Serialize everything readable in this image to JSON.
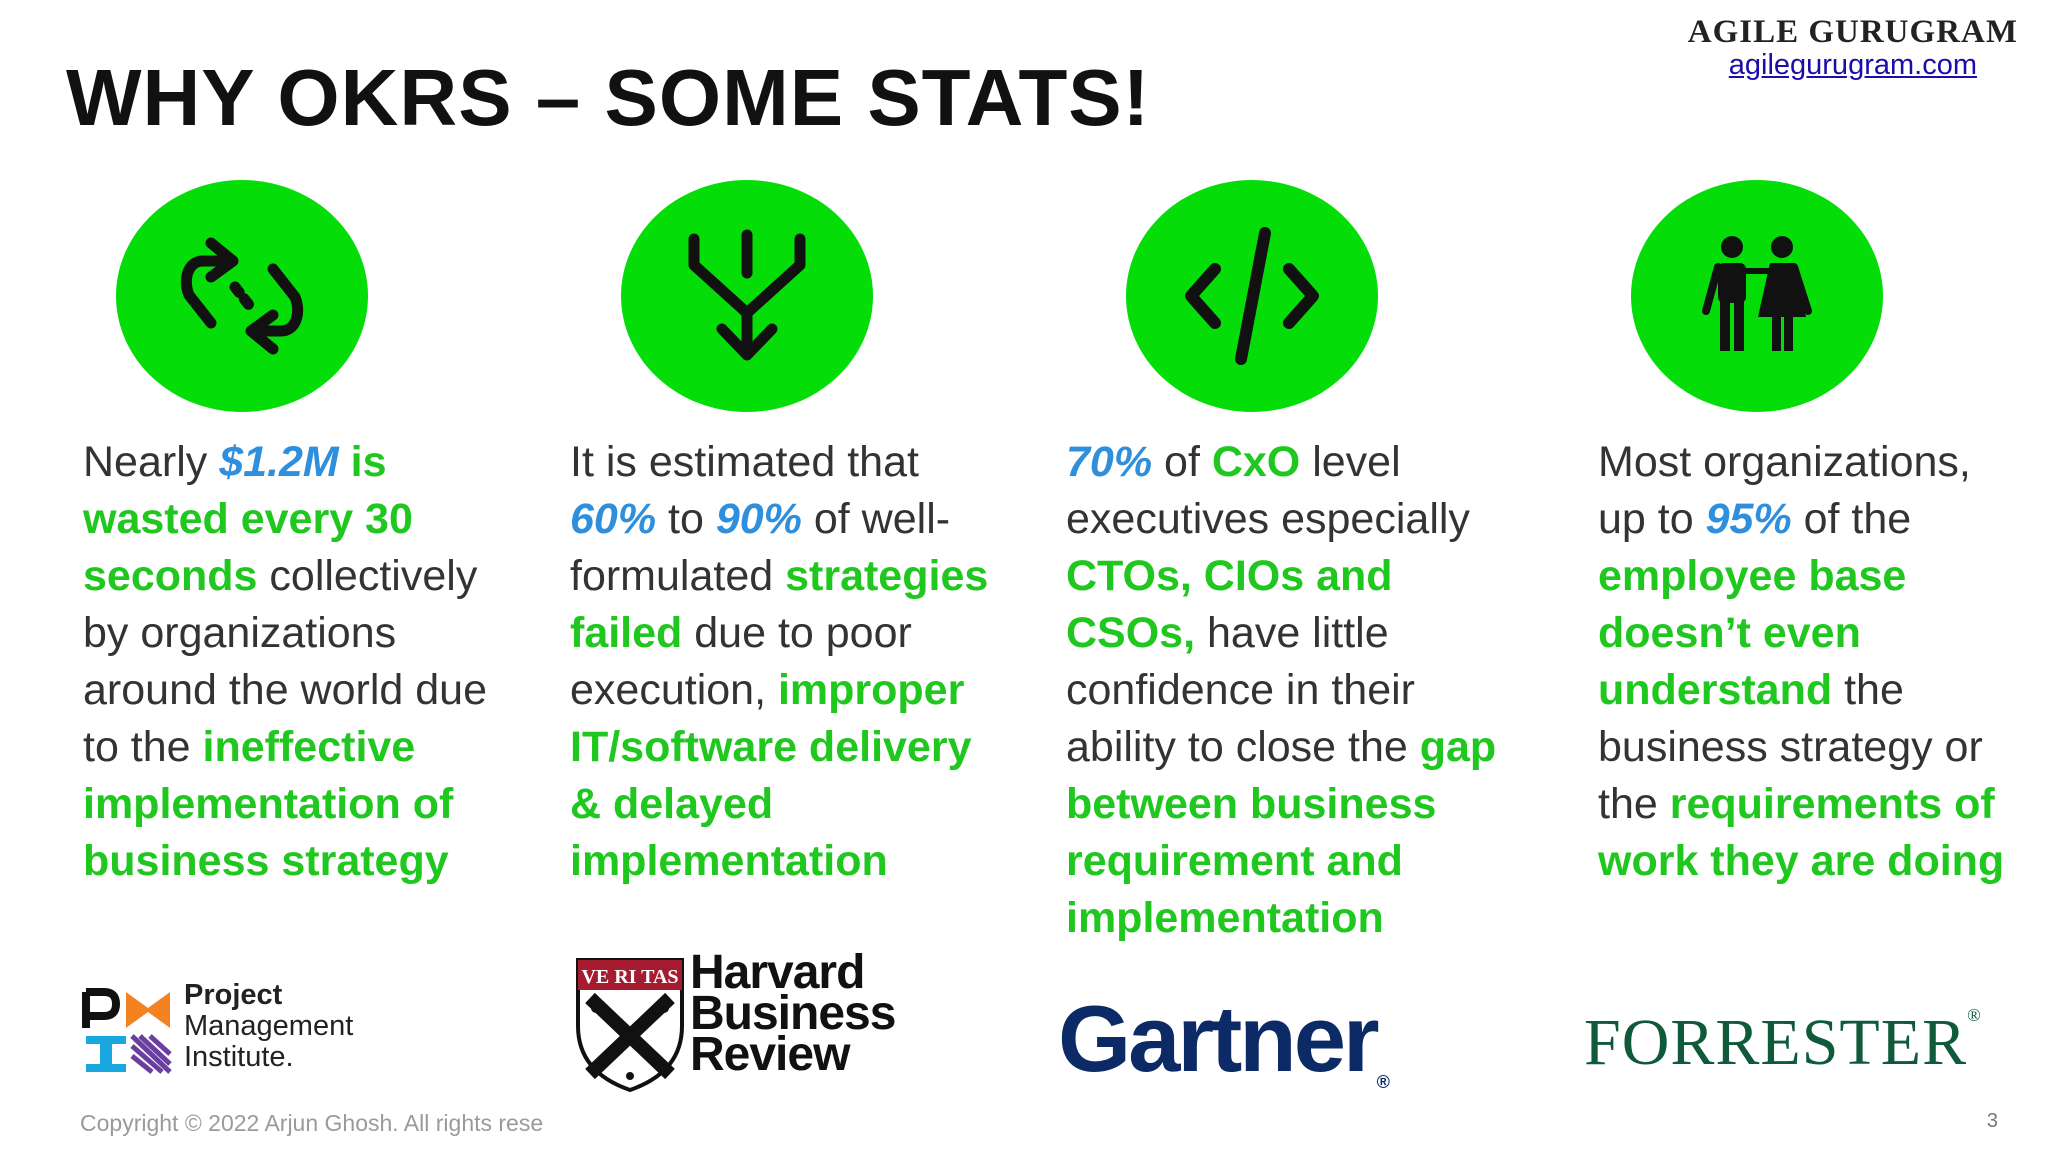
{
  "header": {
    "title": "WHY OKRS – SOME STATS!",
    "brand_name": "AGILE GURUGRAM",
    "brand_url": "agilegurugram.com"
  },
  "accent_colors": {
    "circle_green": "#05dd08",
    "highlight_green": "#1fc71f",
    "highlight_blue": "#2f8fdc"
  },
  "icons": [
    "sync-arrows-icon",
    "merge-arrows-icon",
    "code-icon",
    "people-icon"
  ],
  "columns": [
    {
      "segments": [
        {
          "t": "Nearly ",
          "s": "n"
        },
        {
          "t": "$1.2M",
          "s": "b"
        },
        {
          "t": " is wasted every 30 seconds",
          "s": "g"
        },
        {
          "t": " collectively by organizations around the world due to the ",
          "s": "n"
        },
        {
          "t": "ineffective implementation of business strategy",
          "s": "g"
        }
      ],
      "source": "Project Management Institute"
    },
    {
      "segments": [
        {
          "t": "It is estimated that ",
          "s": "n"
        },
        {
          "t": "60%",
          "s": "b"
        },
        {
          "t": " to ",
          "s": "n"
        },
        {
          "t": "90%",
          "s": "b"
        },
        {
          "t": " of well-formulated ",
          "s": "n"
        },
        {
          "t": "strategies failed",
          "s": "g"
        },
        {
          "t": " due to poor execution, ",
          "s": "n"
        },
        {
          "t": "improper IT/software delivery & delayed implementation",
          "s": "g"
        }
      ],
      "source": "Harvard Business Review"
    },
    {
      "segments": [
        {
          "t": "70%",
          "s": "b"
        },
        {
          "t": " of ",
          "s": "n"
        },
        {
          "t": "CxO",
          "s": "g"
        },
        {
          "t": " level executives especially ",
          "s": "n"
        },
        {
          "t": "CTOs, CIOs and CSOs,",
          "s": "g"
        },
        {
          "t": " have little confidence in their ability to close the ",
          "s": "n"
        },
        {
          "t": "gap between business requirement and implementation",
          "s": "g"
        }
      ],
      "source": "Gartner"
    },
    {
      "segments": [
        {
          "t": "Most organizations, up to ",
          "s": "n"
        },
        {
          "t": "95%",
          "s": "b"
        },
        {
          "t": " of the ",
          "s": "n"
        },
        {
          "t": "employee base doesn’t even understand",
          "s": "g"
        },
        {
          "t": " the business strategy or the ",
          "s": "n"
        },
        {
          "t": "requirements of work they are doing",
          "s": "g"
        }
      ],
      "source": "Forrester"
    }
  ],
  "logos": {
    "pmi": [
      "Project",
      "Management",
      "Institute."
    ],
    "hbr_crest": "VE RI TAS",
    "hbr": [
      "Harvard",
      "Business",
      "Review"
    ],
    "gartner": "Gartner",
    "gartner_mark": "®",
    "forrester": "FORRESTER",
    "forrester_mark": "®"
  },
  "footer": {
    "copyright": "Copyright © 2022 Arjun Ghosh. All rights rese",
    "page_number": "3"
  }
}
